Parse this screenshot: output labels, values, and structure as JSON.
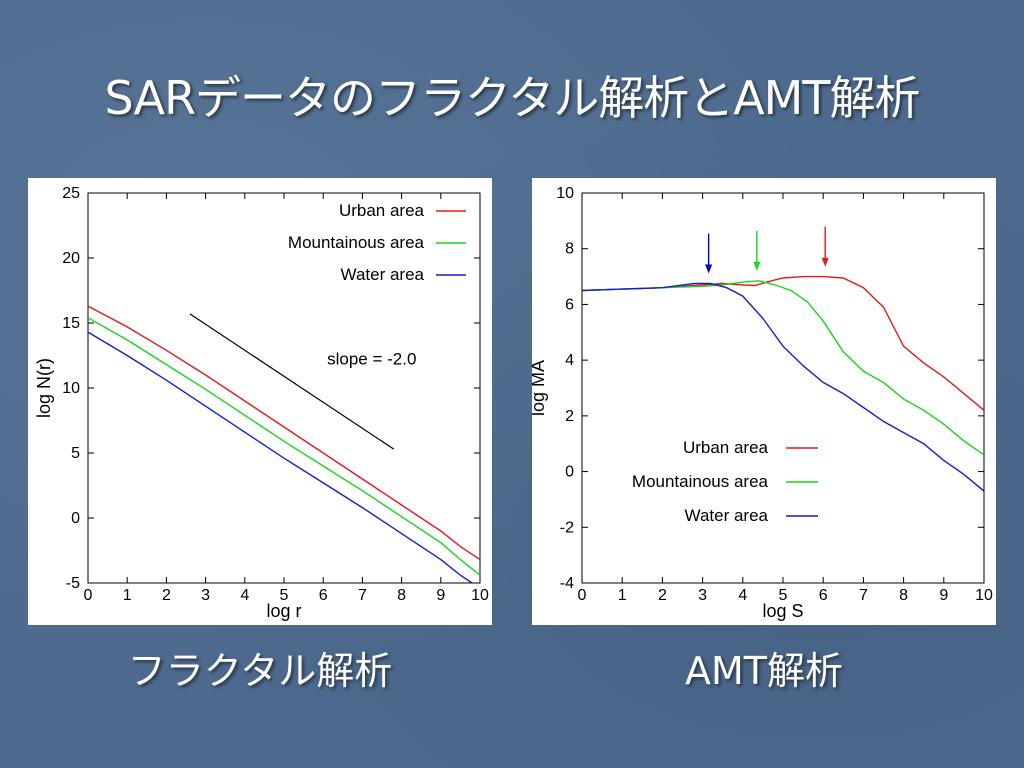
{
  "slide": {
    "title": "SARデータのフラクタル解析とAMT解析",
    "caption_left": "フラクタル解析",
    "caption_right": "AMT解析"
  },
  "colors": {
    "urban": "#e31a1c",
    "mountain": "#19d619",
    "water": "#1a1ad6",
    "arrow_water": "#0000cc"
  },
  "chart_data": [
    {
      "type": "line",
      "xlabel": "log r",
      "ylabel": "log N(r)",
      "xlim": [
        0,
        10
      ],
      "ylim": [
        -5,
        25
      ],
      "xticks": [
        0,
        1,
        2,
        3,
        4,
        5,
        6,
        7,
        8,
        9,
        10
      ],
      "yticks": [
        -5,
        0,
        5,
        10,
        15,
        20,
        25
      ],
      "legend_position": "top-right",
      "series": [
        {
          "name": "Urban area",
          "color": "#e31a1c",
          "x": [
            0,
            1,
            2,
            3,
            4,
            5,
            6,
            7,
            8,
            9,
            9.5,
            10
          ],
          "y": [
            16.3,
            14.7,
            12.9,
            11.0,
            9.0,
            7.0,
            5.0,
            3.0,
            1.0,
            -1.0,
            -2.2,
            -3.2
          ]
        },
        {
          "name": "Mountainous area",
          "color": "#19d619",
          "x": [
            0,
            1,
            2,
            3,
            4,
            5,
            6,
            7,
            8,
            9,
            9.5,
            10
          ],
          "y": [
            15.4,
            13.7,
            11.8,
            9.9,
            7.9,
            5.9,
            4.0,
            2.1,
            0.1,
            -1.9,
            -3.2,
            -4.4
          ]
        },
        {
          "name": "Water area",
          "color": "#1a1ad6",
          "x": [
            0,
            1,
            2,
            3,
            4,
            5,
            6,
            7,
            8,
            9,
            9.5,
            9.8
          ],
          "y": [
            14.3,
            12.5,
            10.6,
            8.6,
            6.6,
            4.6,
            2.7,
            0.8,
            -1.2,
            -3.2,
            -4.4,
            -5.0
          ]
        }
      ],
      "annotations": [
        {
          "text": "slope = -2.0",
          "x": 6.1,
          "y": 11.8
        },
        {
          "type": "reference-line",
          "x": [
            2.6,
            7.8
          ],
          "y": [
            15.7,
            5.3
          ]
        }
      ]
    },
    {
      "type": "line",
      "xlabel": "log S",
      "ylabel": "log MA",
      "xlim": [
        0,
        10
      ],
      "ylim": [
        -4,
        10
      ],
      "xticks": [
        0,
        1,
        2,
        3,
        4,
        5,
        6,
        7,
        8,
        9,
        10
      ],
      "yticks": [
        -4,
        -2,
        0,
        2,
        4,
        6,
        8,
        10
      ],
      "legend_position": "bottom-right",
      "series": [
        {
          "name": "Urban area",
          "color": "#e31a1c",
          "x": [
            0,
            1,
            2,
            3,
            3.5,
            4,
            4.3,
            4.6,
            5,
            5.5,
            6,
            6.5,
            7,
            7.5,
            8,
            8.5,
            9,
            9.5,
            10
          ],
          "y": [
            6.5,
            6.55,
            6.6,
            6.7,
            6.75,
            6.7,
            6.68,
            6.8,
            6.95,
            7.0,
            7.0,
            6.95,
            6.6,
            5.9,
            4.5,
            3.9,
            3.4,
            2.8,
            2.2
          ]
        },
        {
          "name": "Mountainous area",
          "color": "#19d619",
          "x": [
            0,
            1,
            2,
            3,
            3.5,
            4,
            4.4,
            4.8,
            5.2,
            5.6,
            6,
            6.5,
            7,
            7.5,
            8,
            8.5,
            9,
            9.5,
            10
          ],
          "y": [
            6.5,
            6.55,
            6.6,
            6.65,
            6.7,
            6.8,
            6.85,
            6.7,
            6.5,
            6.1,
            5.4,
            4.3,
            3.6,
            3.2,
            2.6,
            2.2,
            1.7,
            1.1,
            0.6
          ]
        },
        {
          "name": "Water area",
          "color": "#1a1ad6",
          "x": [
            0,
            1,
            2,
            2.8,
            3.2,
            3.6,
            4,
            4.5,
            5,
            5.5,
            6,
            6.5,
            7,
            7.5,
            8,
            8.5,
            9,
            9.5,
            10
          ],
          "y": [
            6.5,
            6.55,
            6.6,
            6.75,
            6.75,
            6.6,
            6.3,
            5.5,
            4.5,
            3.8,
            3.2,
            2.8,
            2.3,
            1.8,
            1.4,
            1.0,
            0.4,
            -0.1,
            -0.7
          ]
        }
      ],
      "markers": [
        {
          "series": "Water area",
          "x": 3.15,
          "color": "#0000cc"
        },
        {
          "series": "Mountainous area",
          "x": 4.35,
          "color": "#19d619"
        },
        {
          "series": "Urban area",
          "x": 6.05,
          "color": "#e31a1c"
        }
      ]
    }
  ]
}
